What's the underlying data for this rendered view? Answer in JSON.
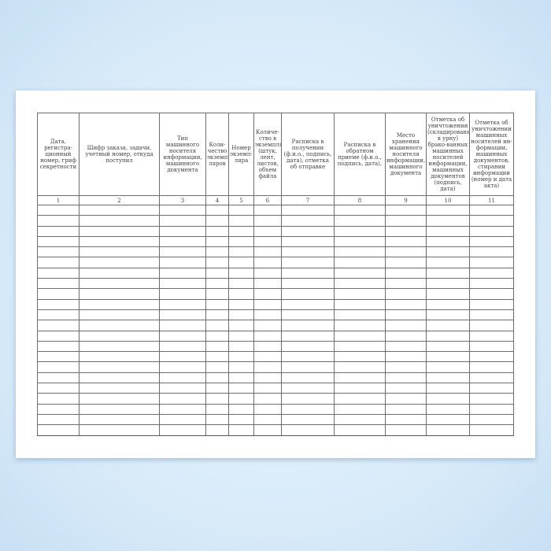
{
  "form": {
    "columns": [
      {
        "header": "Дата, регистра-ционный номер, гриф секретности",
        "number": "1"
      },
      {
        "header": "Шифр заказа, задачи, учетный номер, откуда поступил",
        "number": "2"
      },
      {
        "header": "Тип машинного носителя информации, машинного документа",
        "number": "3"
      },
      {
        "header": "Коли-чество экземп-ляров",
        "number": "4"
      },
      {
        "header": "Номер экземп-ляра",
        "number": "5"
      },
      {
        "header": "Количе-ство в экземпляре (штук, лент, листов, объем файла",
        "number": "6"
      },
      {
        "header": "Расписка в получении (ф.и.о., подпись, дата), отметка об отправке",
        "number": "7"
      },
      {
        "header": "Расписка в обратном приеме (ф.и.о., подпись, дата),",
        "number": "8"
      },
      {
        "header": "Место хранения машинного носителя информации, машинного документа",
        "number": "9"
      },
      {
        "header": "Отметка об уничтожении (складировании в урну) брако-ванных машинных носителей информации, машинных документов (подпись, дата)",
        "number": "10"
      },
      {
        "header": "Отметка об уничтожении машинных носителей ин-формации, машинных документов, стирании информации (номер и  дата акта)",
        "number": "11"
      }
    ]
  }
}
